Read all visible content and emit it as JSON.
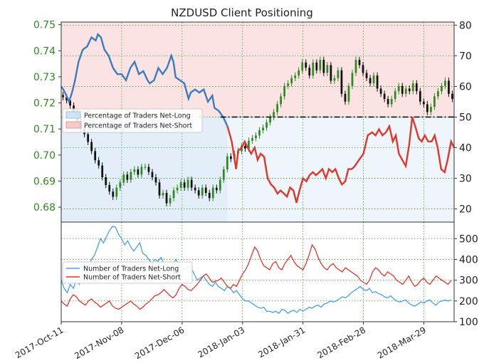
{
  "chart_data": [
    {
      "type": "line",
      "panel": "top",
      "title": "NZDUSD Client Positioning",
      "left_axis": {
        "ticks": [
          "0.75",
          "0.74",
          "0.73",
          "0.72",
          "0.71",
          "0.70",
          "0.69",
          "0.68"
        ],
        "ylim": [
          0.6743,
          0.751
        ],
        "tick_color": "#2e8b20"
      },
      "right_axis": {
        "ticks": [
          "80",
          "70",
          "60",
          "50",
          "40",
          "30",
          "20"
        ],
        "ylim": [
          15.7,
          81.0
        ]
      },
      "grid": true,
      "legend": {
        "placement": "left-middle",
        "entries": [
          "Percentage of Traders Net-Long",
          "Percentage of Traders Net-Short"
        ]
      },
      "reference_line_at": 50,
      "series": [
        {
          "name": "Percentage of Traders Net-Long",
          "color": "#3b7bbf",
          "fill": "#cfe3f5",
          "axis": "right",
          "values_above_50": [
            [
              0.0,
              60
            ],
            [
              0.5,
              59
            ],
            [
              1.2,
              57
            ],
            [
              1.8,
              55
            ],
            [
              2.5,
              58
            ],
            [
              3.2,
              62
            ],
            [
              4.0,
              68
            ],
            [
              5.0,
              72
            ],
            [
              6.0,
              73
            ],
            [
              7.0,
              76
            ],
            [
              8.0,
              75
            ],
            [
              8.5,
              77
            ],
            [
              9.2,
              76
            ],
            [
              10.0,
              72
            ],
            [
              11.0,
              70
            ],
            [
              12.0,
              66
            ],
            [
              13.0,
              64
            ],
            [
              14.0,
              64
            ],
            [
              15.0,
              62
            ],
            [
              16.0,
              66
            ],
            [
              17.0,
              68
            ],
            [
              18.0,
              64
            ],
            [
              19.0,
              65
            ],
            [
              20.0,
              62
            ],
            [
              20.5,
              61
            ],
            [
              21.5,
              62
            ],
            [
              22.5,
              66
            ],
            [
              23.5,
              64
            ],
            [
              24.5,
              66
            ],
            [
              25.5,
              70
            ],
            [
              26.0,
              68
            ],
            [
              26.5,
              63
            ],
            [
              27.5,
              62
            ],
            [
              28.5,
              61
            ],
            [
              29.5,
              56
            ],
            [
              30.0,
              58
            ],
            [
              31.0,
              59
            ],
            [
              32.0,
              58
            ],
            [
              33.0,
              59
            ],
            [
              34.0,
              55
            ],
            [
              35.0,
              57
            ],
            [
              35.5,
              53
            ],
            [
              36.5,
              52
            ],
            [
              37.5,
              50
            ],
            [
              38.5,
              47
            ]
          ],
          "values_below_50_note": "plotted as Net-Short mirror"
        },
        {
          "name": "Percentage of Traders Net-Short",
          "color": "#e0362b",
          "fill": "#f7caca",
          "axis": "right",
          "values_below_50": [
            [
              38.5,
              47
            ],
            [
              39.5,
              42
            ],
            [
              40.5,
              33
            ],
            [
              41.0,
              39
            ],
            [
              41.8,
              40
            ],
            [
              42.5,
              42
            ],
            [
              43.2,
              40
            ],
            [
              44.0,
              38
            ],
            [
              44.8,
              40
            ],
            [
              45.5,
              36
            ],
            [
              46.2,
              38
            ],
            [
              47.0,
              37
            ],
            [
              47.8,
              30
            ],
            [
              48.6,
              28
            ],
            [
              49.3,
              27
            ],
            [
              50.1,
              25
            ],
            [
              50.8,
              26
            ],
            [
              51.6,
              25
            ],
            [
              52.3,
              24
            ],
            [
              53.0,
              27
            ],
            [
              53.8,
              26
            ],
            [
              54.5,
              22
            ],
            [
              55.2,
              26
            ],
            [
              56.0,
              30
            ],
            [
              56.8,
              29
            ],
            [
              57.5,
              31
            ],
            [
              58.3,
              32
            ],
            [
              59.0,
              31
            ],
            [
              59.8,
              32
            ],
            [
              60.5,
              33
            ],
            [
              61.3,
              30
            ],
            [
              62.0,
              33
            ],
            [
              62.8,
              32
            ],
            [
              63.5,
              33
            ],
            [
              64.3,
              30
            ],
            [
              65.0,
              28
            ],
            [
              65.8,
              29
            ],
            [
              66.5,
              33
            ],
            [
              67.3,
              33
            ],
            [
              68.0,
              34
            ],
            [
              69.0,
              36
            ],
            [
              70.0,
              38
            ],
            [
              71.0,
              44
            ],
            [
              72.0,
              45
            ],
            [
              72.8,
              44
            ],
            [
              73.6,
              46
            ],
            [
              74.4,
              44
            ],
            [
              75.2,
              45
            ],
            [
              76.0,
              47
            ],
            [
              76.8,
              42
            ],
            [
              77.5,
              44
            ],
            [
              78.2,
              38
            ],
            [
              79.0,
              36
            ],
            [
              79.8,
              34
            ],
            [
              80.6,
              41
            ],
            [
              81.3,
              50
            ],
            [
              82.0,
              47
            ],
            [
              82.8,
              43
            ],
            [
              83.5,
              42
            ],
            [
              84.2,
              44
            ],
            [
              85.0,
              42
            ],
            [
              85.8,
              42
            ],
            [
              86.5,
              44
            ],
            [
              87.2,
              40
            ],
            [
              88.0,
              33
            ],
            [
              88.8,
              32
            ],
            [
              89.5,
              36
            ],
            [
              90.3,
              42
            ],
            [
              91.0,
              40
            ]
          ]
        }
      ],
      "price_candles": {
        "color_up": "#2e8b20",
        "color_down": "#111111",
        "closes": [
          0.7222,
          0.721,
          0.719,
          0.7165,
          0.713,
          0.71,
          0.708,
          0.705,
          0.7015,
          0.698,
          0.696,
          0.6915,
          0.6885,
          0.686,
          0.684,
          0.6875,
          0.6895,
          0.6925,
          0.6905,
          0.6935,
          0.6945,
          0.6925,
          0.6955,
          0.6955,
          0.6935,
          0.6915,
          0.6895,
          0.6845,
          0.6855,
          0.6815,
          0.6835,
          0.6865,
          0.6875,
          0.6895,
          0.6875,
          0.6905,
          0.6875,
          0.6865,
          0.6845,
          0.6875,
          0.6855,
          0.6835,
          0.6875,
          0.6865,
          0.6905,
          0.6945,
          0.6995,
          0.6985,
          0.7005,
          0.7015,
          0.7035,
          0.7025,
          0.7055,
          0.7065,
          0.7075,
          0.7095,
          0.7105,
          0.7125,
          0.7145,
          0.7165,
          0.7195,
          0.7225,
          0.7265,
          0.7275,
          0.7295,
          0.7305,
          0.7325,
          0.7355,
          0.7335,
          0.7305,
          0.7355,
          0.7325,
          0.7365,
          0.7315,
          0.7345,
          0.7285,
          0.7295,
          0.7325,
          0.7235,
          0.7205,
          0.7265,
          0.7315,
          0.7365,
          0.7345,
          0.7315,
          0.7295,
          0.7275,
          0.7305,
          0.7255,
          0.7235,
          0.7215,
          0.7195,
          0.7215,
          0.7245,
          0.7265,
          0.7235,
          0.7255,
          0.7245,
          0.7275,
          0.7245,
          0.7205,
          0.7195,
          0.7165,
          0.7185,
          0.7225,
          0.7245,
          0.7265,
          0.7285,
          0.7235,
          0.7215
        ]
      },
      "x_index_range": [
        0,
        91
      ]
    },
    {
      "type": "line",
      "panel": "bottom",
      "right_axis": {
        "ticks": [
          "500",
          "400",
          "300",
          "200",
          "100"
        ],
        "ylim": [
          100,
          580
        ]
      },
      "grid": true,
      "legend": {
        "placement": "left-middle",
        "entries": [
          "Number of Traders Net-Long",
          "Number of Traders Net-Short"
        ]
      },
      "x_ticks": [
        "2017-Oct-11",
        "2017-Nov-08",
        "2017-Dec-06",
        "2018-Jan-03",
        "2018-Jan-31",
        "2018-Feb-28",
        "2018-Mar-29"
      ],
      "x_tick_positions": [
        0,
        20,
        40,
        60,
        80,
        100,
        120
      ],
      "x_range": [
        0,
        130
      ],
      "series": [
        {
          "name": "Number of Traders Net-Long",
          "color": "#4a9fe8",
          "values": [
            300,
            260,
            240,
            280,
            260,
            300,
            280,
            320,
            330,
            360,
            400,
            420,
            460,
            500,
            480,
            510,
            540,
            560,
            555,
            520,
            500,
            470,
            490,
            460,
            440,
            460,
            480,
            430,
            420,
            400,
            380,
            400,
            390,
            410,
            380,
            370,
            360,
            380,
            400,
            370,
            360,
            350,
            370,
            360,
            330,
            300,
            310,
            320,
            300,
            280,
            270,
            290,
            270,
            260,
            250,
            270,
            260,
            240,
            250,
            230,
            210,
            200,
            200,
            190,
            180,
            170,
            165,
            170,
            150,
            150,
            145,
            150,
            140,
            160,
            155,
            140,
            150,
            155,
            145,
            160,
            150,
            160,
            170,
            165,
            175,
            180,
            170,
            185,
            190,
            200,
            195,
            200,
            210,
            220,
            215,
            225,
            240,
            250,
            260,
            270,
            255,
            250,
            260,
            240,
            245,
            235,
            230,
            220,
            215,
            225,
            210,
            200,
            195,
            200,
            205,
            190,
            180,
            175,
            185,
            195,
            190,
            200,
            205,
            190,
            180,
            195,
            200,
            205,
            200,
            205
          ]
        },
        {
          "name": "Number of Traders Net-Short",
          "color": "#e0362b",
          "values": [
            200,
            185,
            175,
            210,
            230,
            220,
            200,
            190,
            180,
            200,
            210,
            195,
            185,
            170,
            180,
            190,
            200,
            175,
            165,
            160,
            170,
            180,
            190,
            200,
            185,
            175,
            160,
            170,
            185,
            195,
            210,
            225,
            230,
            240,
            255,
            240,
            225,
            215,
            230,
            260,
            280,
            270,
            255,
            250,
            265,
            280,
            300,
            320,
            330,
            310,
            290,
            295,
            300,
            310,
            290,
            270,
            260,
            280,
            270,
            300,
            330,
            350,
            380,
            420,
            460,
            440,
            400,
            370,
            360,
            350,
            380,
            390,
            360,
            350,
            380,
            400,
            420,
            390,
            370,
            360,
            350,
            380,
            420,
            470,
            450,
            410,
            380,
            360,
            350,
            370,
            380,
            360,
            350,
            340,
            360,
            350,
            340,
            330,
            320,
            300,
            290,
            280,
            300,
            340,
            360,
            350,
            330,
            320,
            340,
            330,
            320,
            300,
            290,
            280,
            300,
            320,
            290,
            270,
            280,
            300,
            310,
            290,
            280,
            300,
            320,
            310,
            300,
            290,
            280,
            300
          ]
        }
      ]
    }
  ]
}
